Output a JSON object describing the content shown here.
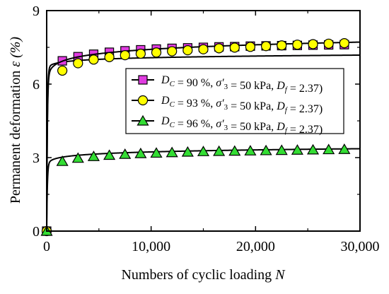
{
  "chart_data": {
    "type": "line",
    "xlabel": "Numbers of cyclic loading",
    "xlabel_symbol": "N",
    "ylabel": "Permanent deformation",
    "ylabel_symbol": "ε (%)",
    "xlim": [
      0,
      30000
    ],
    "ylim": [
      0,
      9
    ],
    "x_ticks": [
      0,
      10000,
      20000,
      30000
    ],
    "x_tick_labels": [
      "0",
      "10,000",
      "20,000",
      "30,000"
    ],
    "y_ticks": [
      0,
      3,
      6,
      9
    ],
    "y_tick_labels": [
      "0",
      "3",
      "6",
      "9"
    ],
    "grid": false,
    "legend_position": "center-right",
    "series": [
      {
        "name": "D_C = 90 %, σ'_3 = 50 kPa, D_f = 2.37)",
        "legend": {
          "D": "D",
          "sub": "C",
          "val": " = 90 %, ",
          "sig": "σ′",
          "sig_sub": "3",
          "mid": " = 50 kPa, ",
          "Df": "D",
          "Df_sub": "f",
          "end": " = 2.37)"
        },
        "marker": "square",
        "color": "#e03ce0",
        "x": [
          0,
          1500,
          3000,
          4500,
          6000,
          7500,
          9000,
          10500,
          12000,
          13500,
          15000,
          16500,
          18000,
          19500,
          21000,
          22500,
          24000,
          25500,
          27000,
          28500
        ],
        "y": [
          0,
          6.95,
          7.12,
          7.22,
          7.3,
          7.36,
          7.4,
          7.43,
          7.46,
          7.48,
          7.5,
          7.52,
          7.53,
          7.55,
          7.56,
          7.57,
          7.58,
          7.59,
          7.6,
          7.61
        ]
      },
      {
        "name": "D_C = 93 %, σ'_3 = 50 kPa, D_f = 2.37)",
        "legend": {
          "D": "D",
          "sub": "C",
          "val": " = 93 %, ",
          "sig": "σ′",
          "sig_sub": "3",
          "mid": " = 50 kPa,  ",
          "Df": "D",
          "Df_sub": "f",
          "end": " = 2.37)"
        },
        "marker": "circle",
        "color": "#ffff00",
        "x": [
          0,
          1500,
          3000,
          4500,
          6000,
          7500,
          9000,
          10500,
          12000,
          13500,
          15000,
          16500,
          18000,
          19500,
          21000,
          22500,
          24000,
          25500,
          27000,
          28500
        ],
        "y": [
          0,
          6.55,
          6.85,
          7.0,
          7.1,
          7.18,
          7.24,
          7.29,
          7.34,
          7.38,
          7.42,
          7.46,
          7.49,
          7.52,
          7.55,
          7.58,
          7.61,
          7.63,
          7.65,
          7.67
        ]
      },
      {
        "name": "D_C = 96 %, σ'_3 = 50 kPa, D_f = 2.37)",
        "legend": {
          "D": "D",
          "sub": "C",
          "val": " = 96 %, ",
          "sig": "σ′",
          "sig_sub": "3",
          "mid": " = 50 kPa, ",
          "Df": "D",
          "Df_sub": "f",
          "end": " = 2.37)"
        },
        "marker": "triangle",
        "color": "#33dd33",
        "x": [
          0,
          1500,
          3000,
          4500,
          6000,
          7500,
          9000,
          10500,
          12000,
          13500,
          15000,
          16500,
          18000,
          19500,
          21000,
          22500,
          24000,
          25500,
          27000,
          28500
        ],
        "y": [
          0,
          2.85,
          2.98,
          3.05,
          3.1,
          3.14,
          3.17,
          3.19,
          3.21,
          3.23,
          3.25,
          3.26,
          3.27,
          3.28,
          3.29,
          3.3,
          3.31,
          3.32,
          3.33,
          3.34
        ]
      }
    ]
  }
}
